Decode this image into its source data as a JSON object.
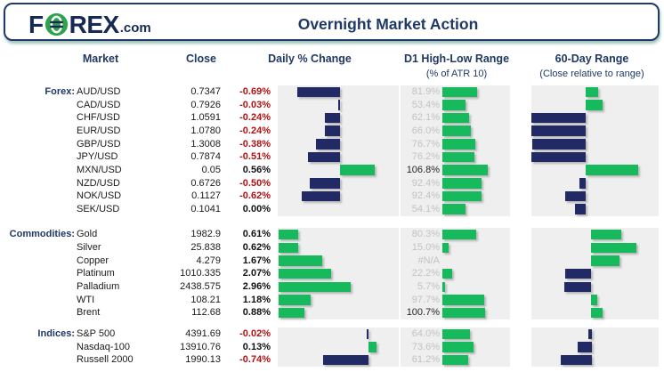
{
  "header": {
    "logo_left": "F",
    "logo_right": "REX",
    "logo_suffix": ".com",
    "title": "Overnight Market Action"
  },
  "columns": {
    "market": "Market",
    "close": "Close",
    "daily": "Daily % Change",
    "d1": "D1 High-Low Range",
    "d1_sub": "(% of ATR 10)",
    "range60": "60-Day Range",
    "range60_sub": "(Close relative to range)"
  },
  "colors": {
    "navy_bar": "#212a65",
    "green_bar": "#16ba5d",
    "panel_gray": "#efefef",
    "header_navy": "#1f3864",
    "negative_red": "#b01010",
    "label_gray": "#c2c2c2"
  },
  "chart_data": {
    "type": "table",
    "note": "bar values in px: daily_bar & range_bar signed from group baseline (navy negative/below, green positive/above); d1_bar green width",
    "groups": [
      {
        "label": "Forex:",
        "rows": [
          {
            "market": "AUD/USD",
            "close": "0.7347",
            "daily": "-0.69%",
            "daily_bar": -48,
            "d1": "81.9%",
            "d1_bar": 39,
            "range_bar": 14
          },
          {
            "market": "CAD/USD",
            "close": "0.7926",
            "daily": "-0.03%",
            "daily_bar": -2,
            "d1": "53.4%",
            "d1_bar": 25.5,
            "range_bar": 19
          },
          {
            "market": "CHF/USD",
            "close": "1.0591",
            "daily": "-0.24%",
            "daily_bar": -17,
            "d1": "62.1%",
            "d1_bar": 29.6,
            "range_bar": -61
          },
          {
            "market": "EUR/USD",
            "close": "1.0780",
            "daily": "-0.24%",
            "daily_bar": -17,
            "d1": "66.0%",
            "d1_bar": 31.5,
            "range_bar": -61
          },
          {
            "market": "GBP/USD",
            "close": "1.3008",
            "daily": "-0.38%",
            "daily_bar": -27,
            "d1": "76.7%",
            "d1_bar": 36.6,
            "range_bar": -60
          },
          {
            "market": "JPY/USD",
            "close": "0.7874",
            "daily": "-0.51%",
            "daily_bar": -36,
            "d1": "76.2%",
            "d1_bar": 36.4,
            "range_bar": -61
          },
          {
            "market": "MXN/USD",
            "close": "0.05",
            "daily": "0.56%",
            "daily_bar": 39,
            "d1": "106.8%",
            "d1_bar": 51,
            "range_bar": 59
          },
          {
            "market": "NZD/USD",
            "close": "0.6726",
            "daily": "-0.50%",
            "daily_bar": -34,
            "d1": "92.4%",
            "d1_bar": 44,
            "range_bar": -7
          },
          {
            "market": "NOK/USD",
            "close": "0.1127",
            "daily": "-0.62%",
            "daily_bar": -43,
            "d1": "92.4%",
            "d1_bar": 44,
            "range_bar": -23
          },
          {
            "market": "SEK/USD",
            "close": "0.1041",
            "daily": "0.00%",
            "daily_bar": 0,
            "d1": "54.1%",
            "d1_bar": 25.8,
            "range_bar": -12
          }
        ]
      },
      {
        "label": "Commodities:",
        "rows": [
          {
            "market": "Gold",
            "close": "1982.9",
            "daily": "0.61%",
            "daily_bar": 22,
            "d1": "80.3%",
            "d1_bar": 38.3,
            "range_bar": 34
          },
          {
            "market": "Silver",
            "close": "25.838",
            "daily": "0.62%",
            "daily_bar": 22.3,
            "d1": "15.0%",
            "d1_bar": 7.2,
            "range_bar": 51
          },
          {
            "market": "Copper",
            "close": "4.279",
            "daily": "1.67%",
            "daily_bar": 48.6,
            "d1": "#N/A",
            "d1_bar": 0,
            "range_bar": 32
          },
          {
            "market": "Platinum",
            "close": "1010.335",
            "daily": "2.07%",
            "daily_bar": 58.7,
            "d1": "22.2%",
            "d1_bar": 10.6,
            "range_bar": -29
          },
          {
            "market": "Palladium",
            "close": "2438.575",
            "daily": "2.96%",
            "daily_bar": 81,
            "d1": "5.7%",
            "d1_bar": 2.7,
            "range_bar": -30
          },
          {
            "market": "WTI",
            "close": "108.21",
            "daily": "1.18%",
            "daily_bar": 36.3,
            "d1": "97.7%",
            "d1_bar": 46.6,
            "range_bar": 7
          },
          {
            "market": "Brent",
            "close": "112.68",
            "daily": "0.88%",
            "daily_bar": 28.8,
            "d1": "100.7%",
            "d1_bar": 48.1,
            "range_bar": 13
          }
        ]
      },
      {
        "label": "Indices:",
        "rows": [
          {
            "market": "S&P 500",
            "close": "4391.69",
            "daily": "-0.02%",
            "daily_bar": -2,
            "d1": "64.0%",
            "d1_bar": 30.5,
            "range_bar": -4
          },
          {
            "market": "Nasdaq-100",
            "close": "13910.76",
            "daily": "0.13%",
            "daily_bar": 9,
            "d1": "73.6%",
            "d1_bar": 35.1,
            "range_bar": -16
          },
          {
            "market": "Russell 2000",
            "close": "1990.13",
            "daily": "-0.74%",
            "daily_bar": -51,
            "d1": "61.2%",
            "d1_bar": 29.2,
            "range_bar": -35
          }
        ]
      }
    ]
  }
}
